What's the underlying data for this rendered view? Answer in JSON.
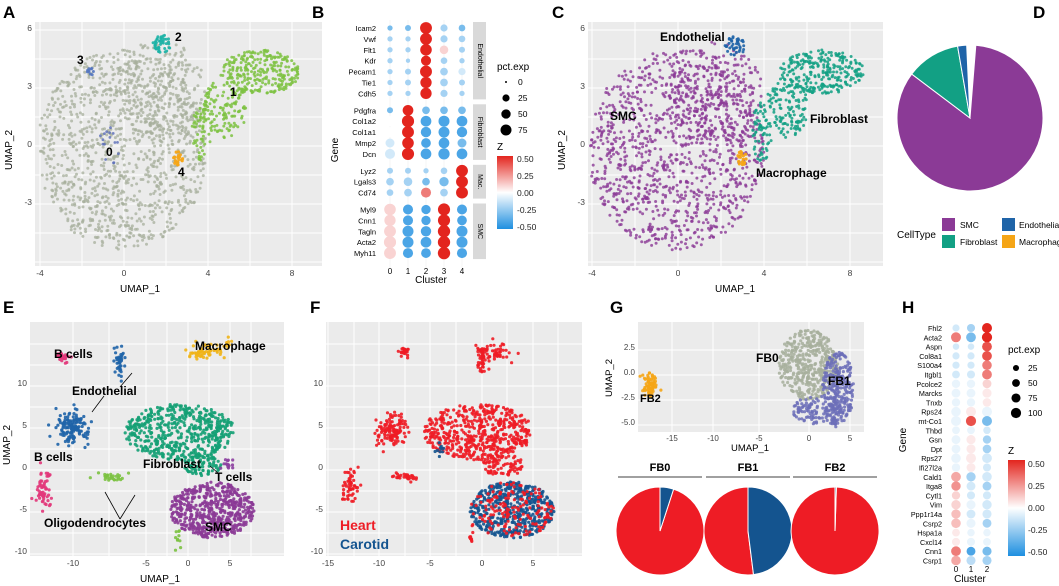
{
  "colors": {
    "smc": "#8B3A96",
    "fibroblast": "#12A084",
    "endothelial": "#1F64A8",
    "macrophage": "#F5A516",
    "grey": "#A7AF9C",
    "heart": "#EE1C25",
    "carotid": "#14548F",
    "fb1": "#6C6EB8",
    "zhi": "#E3251E",
    "zlo": "#1E8FE0"
  },
  "panels": {
    "A": "A",
    "B": "B",
    "C": "C",
    "D": "D",
    "E": "E",
    "F": "F",
    "G": "G",
    "H": "H"
  },
  "axes": {
    "umap1": "UMAP_1",
    "umap2": "UMAP_2",
    "gene": "Gene",
    "cluster": "Cluster"
  },
  "panelA": {
    "xticks": [
      "-4",
      "0",
      "4",
      "8"
    ],
    "yticks": [
      "6",
      "3",
      "0",
      "-3"
    ],
    "labels": [
      "0",
      "1",
      "2",
      "3",
      "4"
    ]
  },
  "panelB": {
    "genes": [
      "Icam2",
      "Vwf",
      "Flt1",
      "Kdr",
      "Pecam1",
      "Tie1",
      "Cdh5",
      "Pdgfra",
      "Col1a2",
      "Col1a1",
      "Mmp2",
      "Dcn",
      "Lyz2",
      "Lgals3",
      "Cd74",
      "Myl9",
      "Cnn1",
      "Tagln",
      "Acta2",
      "Myh11"
    ],
    "groups": [
      "Endothelial",
      "Fibroblast",
      "Mac.",
      "SMC"
    ],
    "clusters": [
      "0",
      "1",
      "2",
      "3",
      "4"
    ],
    "pct_title": "pct.exp",
    "pct_vals": [
      "0",
      "25",
      "50",
      "75"
    ],
    "z_title": "Z",
    "z_vals": [
      "0.50",
      "0.25",
      "0.00",
      "-0.25",
      "-0.50"
    ]
  },
  "panelC": {
    "xticks": [
      "-4",
      "0",
      "4",
      "8"
    ],
    "yticks": [
      "6",
      "3",
      "0",
      "-3"
    ],
    "labels": [
      "Endothelial",
      "SMC",
      "Fibroblast",
      "Macrophage"
    ]
  },
  "panelD": {
    "legend_title": "CellType",
    "items": [
      "SMC",
      "Endothelial",
      "Fibroblast",
      "Macrophage"
    ],
    "shares": [
      0.84,
      0.02,
      0.12,
      0.02
    ]
  },
  "panelE": {
    "xticks": [
      "-10",
      "-5",
      "0",
      "5"
    ],
    "yticks": [
      "10",
      "5",
      "0",
      "-5",
      "-10"
    ],
    "labels": [
      "B cells",
      "Macrophage",
      "Endothelial",
      "Fibroblast",
      "B cells",
      "T cells",
      "Oligodendrocytes",
      "SMC"
    ]
  },
  "panelF": {
    "xticks": [
      "-15",
      "-10",
      "-5",
      "0",
      "5"
    ],
    "yticks": [
      "10",
      "5",
      "0",
      "-5",
      "-10"
    ],
    "legend": [
      "Heart",
      "Carotid"
    ]
  },
  "panelG": {
    "xticks": [
      "-15",
      "-10",
      "-5",
      "0",
      "5"
    ],
    "yticks": [
      "2.5",
      "0.0",
      "-2.5",
      "-5.0"
    ],
    "labels": [
      "FB0",
      "FB1",
      "FB2"
    ],
    "pies": [
      {
        "title": "FB0",
        "heart": 0.95
      },
      {
        "title": "FB1",
        "heart": 0.52
      },
      {
        "title": "FB2",
        "heart": 0.995
      }
    ]
  },
  "panelH": {
    "genes": [
      "Fhl2",
      "Acta2",
      "Aspn",
      "Col8a1",
      "S100a4",
      "Itgbl1",
      "Pcolce2",
      "Marcks",
      "Tnxb",
      "Rps24",
      "mt-Co1",
      "Thbd",
      "Gsn",
      "Dpt",
      "Rps27",
      "Ifi27l2a",
      "Cald1",
      "Itga8",
      "Cytl1",
      "Vim",
      "Ppp1r14a",
      "Csrp2",
      "Hspa1a",
      "Cxcl14",
      "Cnn1",
      "Csrp1"
    ],
    "clusters": [
      "0",
      "1",
      "2"
    ],
    "pct_title": "pct.exp",
    "pct_vals": [
      "25",
      "50",
      "75",
      "100"
    ],
    "z_title": "Z",
    "z_vals": [
      "0.50",
      "0.25",
      "0.00",
      "-0.25",
      "-0.50"
    ]
  }
}
